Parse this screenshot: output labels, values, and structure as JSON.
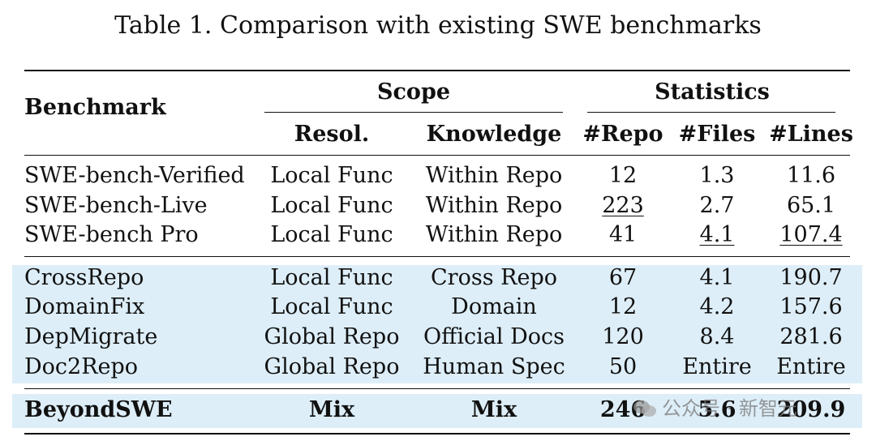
{
  "caption": "Table 1. Comparison with existing SWE benchmarks",
  "headers": {
    "benchmark": "Benchmark",
    "scope": "Scope",
    "statistics": "Statistics",
    "resol": "Resol.",
    "knowledge": "Knowledge",
    "repo": "#Repo",
    "files": "#Files",
    "lines": "#Lines"
  },
  "rows": [
    {
      "name": "SWE-bench-Verified",
      "resol": "Local Func",
      "knowledge": "Within Repo",
      "repo": "12",
      "files": "1.3",
      "lines": "11.6"
    },
    {
      "name": "SWE-bench-Live",
      "resol": "Local Func",
      "knowledge": "Within Repo",
      "repo": "223",
      "files": "2.7",
      "lines": "65.1"
    },
    {
      "name": "SWE-bench Pro",
      "resol": "Local Func",
      "knowledge": "Within Repo",
      "repo": "41",
      "files": "4.1",
      "lines": "107.4"
    },
    {
      "name": "CrossRepo",
      "resol": "Local Func",
      "knowledge": "Cross Repo",
      "repo": "67",
      "files": "4.1",
      "lines": "190.7"
    },
    {
      "name": "DomainFix",
      "resol": "Local Func",
      "knowledge": "Domain",
      "repo": "12",
      "files": "4.2",
      "lines": "157.6"
    },
    {
      "name": "DepMigrate",
      "resol": "Global Repo",
      "knowledge": "Official Docs",
      "repo": "120",
      "files": "8.4",
      "lines": "281.6"
    },
    {
      "name": "Doc2Repo",
      "resol": "Global Repo",
      "knowledge": "Human Spec",
      "repo": "50",
      "files": "Entire",
      "lines": "Entire"
    },
    {
      "name": "BeyondSWE",
      "resol": "Mix",
      "knowledge": "Mix",
      "repo": "246",
      "files": "5.6",
      "lines": "209.9"
    }
  ],
  "highlight_color": "#ddeef8",
  "watermark": "公众号 · 新智元"
}
